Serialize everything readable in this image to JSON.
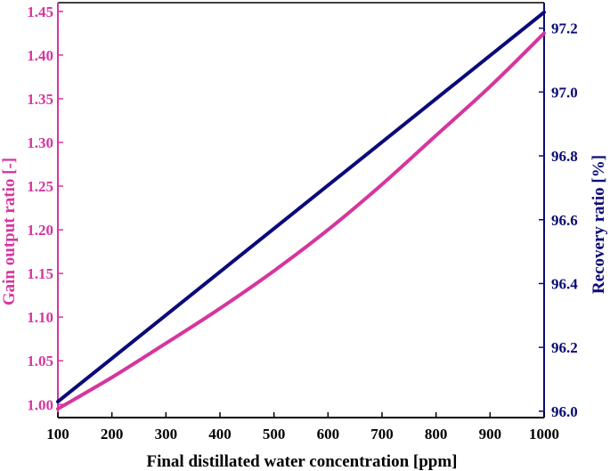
{
  "chart_data": {
    "type": "line",
    "xlabel": "Final distillated water concentration [ppm]",
    "ylabel_left": "Gain output ratio [-]",
    "ylabel_right": "Recovery ratio [%]",
    "xlim": [
      100,
      1000
    ],
    "ylim_left": [
      0.985,
      1.46
    ],
    "ylim_right": [
      95.98,
      97.28
    ],
    "x_ticks": [
      "100",
      "200",
      "300",
      "400",
      "500",
      "600",
      "700",
      "800",
      "900",
      "1000"
    ],
    "y_left_ticks": [
      "1.00",
      "1.05",
      "1.10",
      "1.15",
      "1.20",
      "1.25",
      "1.30",
      "1.35",
      "1.40",
      "1.45"
    ],
    "y_right_ticks": [
      "96.0",
      "96.2",
      "96.4",
      "96.6",
      "96.8",
      "97.0",
      "97.2"
    ],
    "grid": false,
    "colors": {
      "gor": "#d6359e",
      "rr": "#0a0a78",
      "axis": "#000000"
    },
    "series": [
      {
        "axis": "left",
        "color": "#d6359e",
        "x": [
          100,
          200,
          300,
          400,
          500,
          600,
          700,
          800,
          900,
          1000
        ],
        "values": [
          0.995,
          1.031,
          1.07,
          1.11,
          1.153,
          1.2,
          1.252,
          1.308,
          1.364,
          1.425
        ]
      },
      {
        "axis": "right",
        "color": "#0a0a78",
        "x": [
          100,
          1000
        ],
        "values": [
          96.03,
          97.25
        ]
      }
    ]
  }
}
